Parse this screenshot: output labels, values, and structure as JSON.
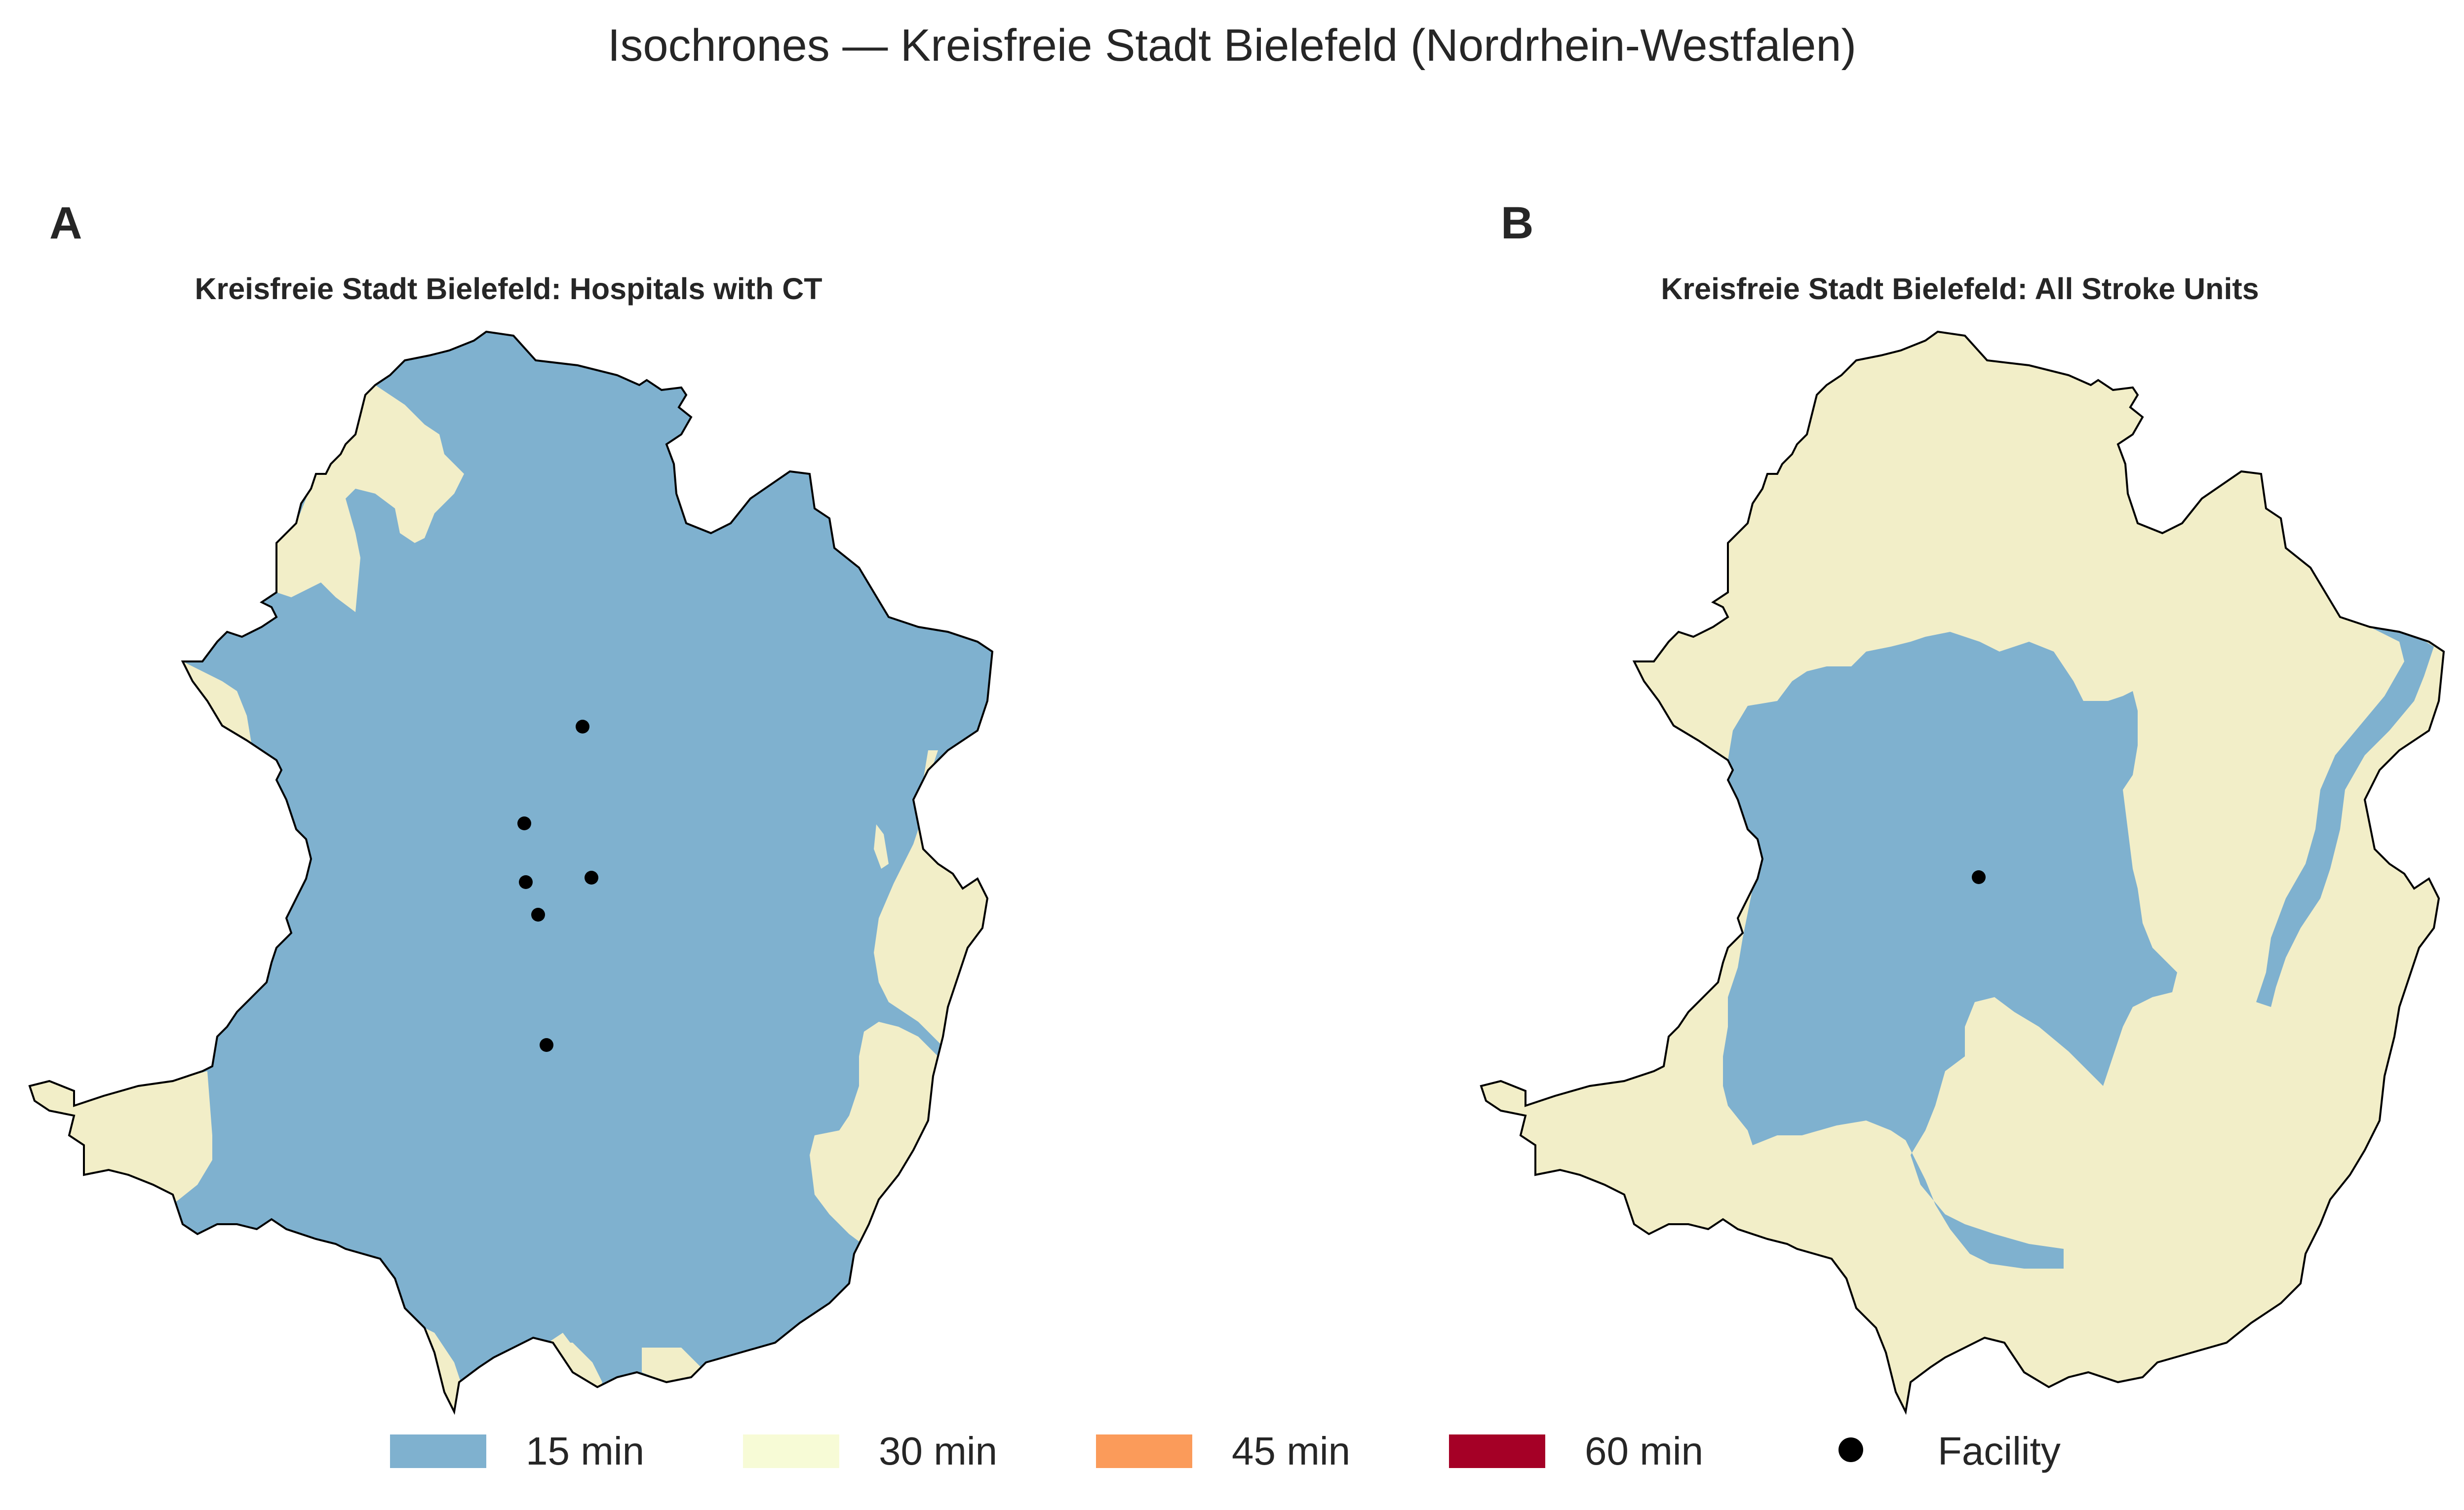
{
  "figure": {
    "title": "Isochrones — Kreisfreie Stadt Bielefeld (Nordrhein-Westfalen)"
  },
  "colors": {
    "15_min": "#7fb1cf",
    "30_min": "#f2eec8",
    "30_min_legend": "#f7fbd6",
    "45_min": "#fb9b5a",
    "60_min": "#a50026",
    "facility": "#000000",
    "boundary": "#000000"
  },
  "panels": [
    {
      "letter": "A",
      "title": "Kreisfreie Stadt Bielefeld: Hospitals with CT",
      "facility_count": 6
    },
    {
      "letter": "B",
      "title": "Kreisfreie Stadt Bielefeld: All Stroke Units",
      "facility_count": 1
    }
  ],
  "legend": {
    "items": [
      {
        "label": "15 min",
        "color": "#7fb1cf",
        "kind": "patch"
      },
      {
        "label": "30 min",
        "color": "#f7fbd6",
        "kind": "patch"
      },
      {
        "label": "45 min",
        "color": "#fb9b5a",
        "kind": "patch"
      },
      {
        "label": "60 min",
        "color": "#a50026",
        "kind": "patch"
      },
      {
        "label": "Facility",
        "color": "#000000",
        "kind": "marker"
      }
    ]
  }
}
